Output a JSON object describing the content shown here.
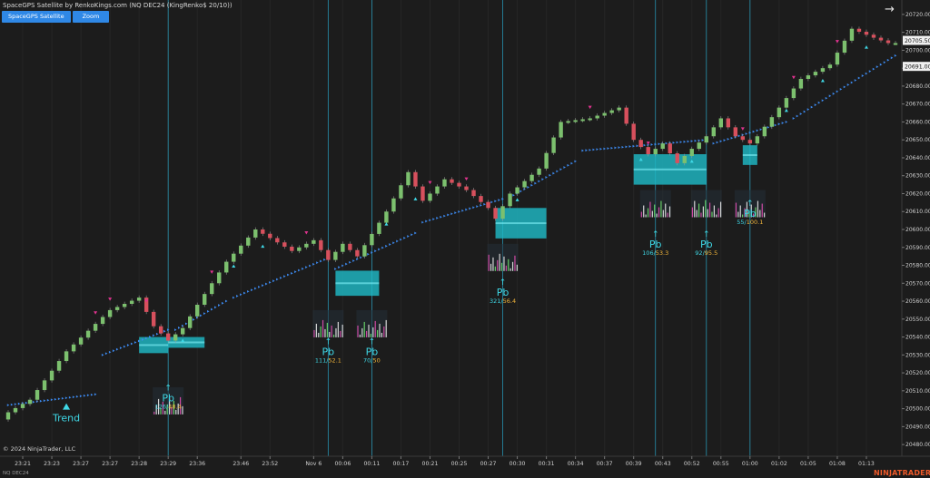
{
  "header": {
    "title": "SpaceGPS Satellite by RenkoKings.com (NQ DEC24 (KingRenko$ 20/10))",
    "buttons": [
      {
        "label": "SpaceGPS Satellite"
      },
      {
        "label": "Zoom"
      }
    ]
  },
  "footer": {
    "copyright": "© 2024 NinjaTrader, LLC",
    "instrument": "NQ DEC24",
    "brand": "NINJATRADER"
  },
  "colors": {
    "background": "#1c1c1c",
    "up_bar": "#7cc06e",
    "down_bar": "#d7505d",
    "trail_dots": "#3d8bf2",
    "pullback_label": "#3fd8e6",
    "zone": "#1fb8c4",
    "vline": "#2aa6c8",
    "accent_value": "#f2b53a"
  },
  "chart_data": {
    "type": "line",
    "title": "",
    "price_axis": {
      "ticks": [
        20480,
        20490,
        20500,
        20510,
        20520,
        20530,
        20540,
        20550,
        20560,
        20570,
        20580,
        20590,
        20600,
        20610,
        20620,
        20630,
        20640,
        20650,
        20660,
        20670,
        20680,
        20690,
        20700,
        20710,
        20720
      ],
      "tick_labels": [
        "20480.00",
        "20490.00",
        "20500.00",
        "20510.00",
        "20520.00",
        "20530.00",
        "20540.00",
        "20550.00",
        "20560.00",
        "20570.00",
        "20580.00",
        "20590.00",
        "20600.00",
        "20610.00",
        "20620.00",
        "20630.00",
        "20640.00",
        "20650.00",
        "20660.00",
        "20670.00",
        "20680.00",
        "20690.00",
        "20700.00",
        "20710.00",
        "20720.00"
      ],
      "range": [
        20475,
        20725
      ],
      "price_flags": [
        {
          "label": "20705.50",
          "value": 20705.5
        },
        {
          "label": "20691.00",
          "value": 20691
        }
      ]
    },
    "time_axis": {
      "labels": [
        "23:21",
        "23:23",
        "23:27",
        "23:27",
        "23:28",
        "23:29",
        "23:36",
        "23:46",
        "23:52",
        "Nov 6",
        "00:06",
        "00:11",
        "00:17",
        "00:21",
        "00:25",
        "00:27",
        "00:30",
        "00:31",
        "00:34",
        "00:37",
        "00:39",
        "00:43",
        "00:52",
        "00:55",
        "01:00",
        "01:02",
        "01:05",
        "01:08",
        "01:13"
      ],
      "bar_index": [
        2,
        6,
        10,
        14,
        18,
        22,
        26,
        32,
        36,
        42,
        46,
        50,
        54,
        58,
        62,
        66,
        70,
        74,
        78,
        82,
        86,
        90,
        94,
        98,
        102,
        106,
        110,
        114,
        118
      ]
    },
    "close_path": {
      "bar_index": [
        0,
        3,
        8,
        14,
        18,
        20,
        22,
        24,
        26,
        30,
        34,
        39,
        42,
        44,
        46,
        48,
        52,
        55,
        57,
        60,
        63,
        66,
        67,
        69,
        73,
        76,
        80,
        84,
        86,
        88,
        90,
        92,
        94,
        96,
        98,
        100,
        102,
        103,
        106,
        109,
        111,
        113,
        116,
        119,
        121
      ],
      "values": [
        20498,
        20505,
        20532,
        20555,
        20562,
        20546,
        20538,
        20545,
        20558,
        20582,
        20600,
        20588,
        20594,
        20583,
        20592,
        20585,
        20610,
        20632,
        20616,
        20628,
        20622,
        20612,
        20606,
        20620,
        20634,
        20660,
        20662,
        20668,
        20650,
        20642,
        20648,
        20637,
        20645,
        20652,
        20662,
        20652,
        20648,
        20652,
        20668,
        20684,
        20688,
        20692,
        20712,
        20707,
        20704
      ]
    },
    "trail_segments": [
      {
        "x": [
          0,
          12
        ],
        "y": [
          20502,
          20508
        ]
      },
      {
        "x": [
          13,
          22
        ],
        "y": [
          20530,
          20544
        ]
      },
      {
        "x": [
          23,
          30
        ],
        "y": [
          20544,
          20560
        ]
      },
      {
        "x": [
          31,
          44
        ],
        "y": [
          20562,
          20584
        ]
      },
      {
        "x": [
          45,
          56
        ],
        "y": [
          20578,
          20598
        ]
      },
      {
        "x": [
          57,
          68
        ],
        "y": [
          20604,
          20617
        ]
      },
      {
        "x": [
          69,
          78
        ],
        "y": [
          20618,
          20638
        ]
      },
      {
        "x": [
          79,
          96
        ],
        "y": [
          20644,
          20650
        ]
      },
      {
        "x": [
          97,
          107
        ],
        "y": [
          20648,
          20660
        ]
      },
      {
        "x": [
          108,
          122
        ],
        "y": [
          20662,
          20697
        ]
      }
    ],
    "zones": [
      {
        "x": [
          18,
          22
        ],
        "y": [
          20531,
          20540
        ]
      },
      {
        "x": [
          22,
          27
        ],
        "y": [
          20534,
          20540
        ]
      },
      {
        "x": [
          45,
          51
        ],
        "y": [
          20563,
          20577
        ]
      },
      {
        "x": [
          67,
          74
        ],
        "y": [
          20595,
          20612
        ]
      },
      {
        "x": [
          86,
          96
        ],
        "y": [
          20625,
          20642
        ]
      },
      {
        "x": [
          101,
          103
        ],
        "y": [
          20636,
          20647
        ]
      }
    ],
    "pullbacks": [
      {
        "label": "Pb",
        "x": 22,
        "v1": "126",
        "v2": "48.4"
      },
      {
        "label": "Pb",
        "x": 44,
        "v1": "111",
        "v2": "52.1"
      },
      {
        "label": "Pb",
        "x": 50,
        "v1": "70",
        "v2": "50"
      },
      {
        "label": "Pb",
        "x": 68,
        "v1": "321",
        "v2": "56.4"
      },
      {
        "label": "Pb",
        "x": 89,
        "v1": "106",
        "v2": "53.3"
      },
      {
        "label": "Pb",
        "x": 96,
        "v1": "92",
        "v2": "95.5"
      },
      {
        "label": "Pb",
        "x": 102,
        "v1": "55",
        "v2": "100.1"
      }
    ],
    "trend_label": {
      "label": "Trend",
      "x": 8
    },
    "vertical_lines_bar_index": [
      22,
      44,
      50,
      68,
      89,
      96,
      102
    ]
  }
}
